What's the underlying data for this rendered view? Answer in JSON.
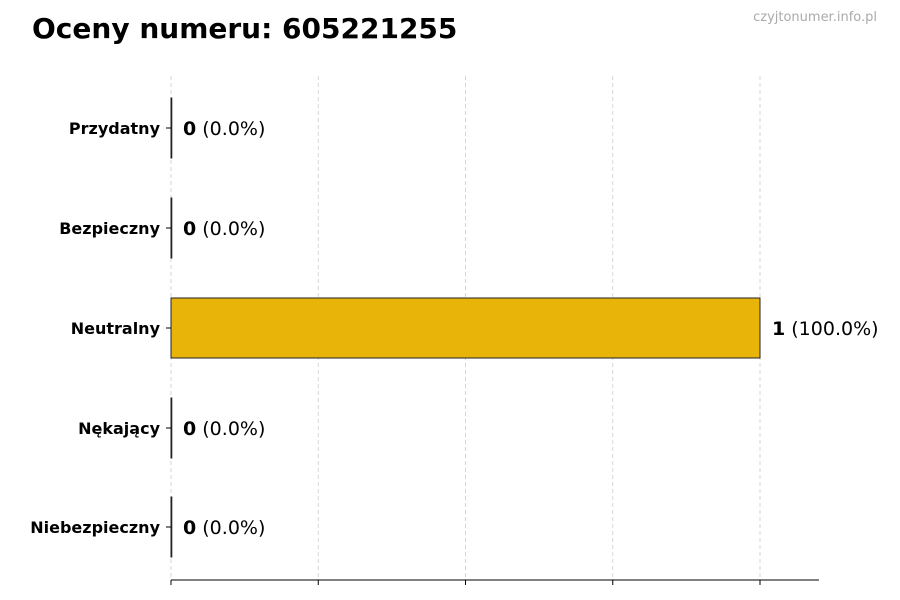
{
  "chart_data": {
    "type": "bar",
    "orientation": "horizontal",
    "title": "Oceny numeru: 605221255",
    "watermark": "czyjtonumer.info.pl",
    "categories": [
      "Przydatny",
      "Bezpieczny",
      "Neutralny",
      "Nękający",
      "Niebezpieczny"
    ],
    "values": [
      0,
      0,
      1,
      0,
      0
    ],
    "data_labels": [
      "(0.0%)",
      "(0.0%)",
      "(100.0%)",
      "(0.0%)",
      "(0.0%)"
    ],
    "bar_color": "#E8B40A",
    "xlim": [
      0,
      1.1
    ],
    "x_ticks": [
      0,
      0.25,
      0.5,
      0.75,
      1.0
    ],
    "x_tick_labels_shown": false,
    "grid": "vertical dashed",
    "xlabel": "",
    "ylabel": ""
  }
}
